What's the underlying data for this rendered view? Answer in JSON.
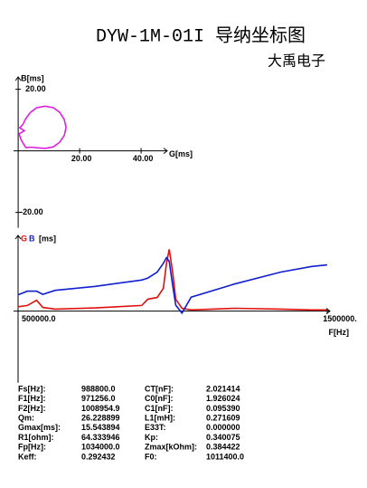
{
  "header": {
    "title": "DYW-1M-01I 导纳坐标图",
    "subtitle": "大禹电子"
  },
  "chart_data": [
    {
      "type": "line",
      "xlabel": "G[ms]",
      "ylabel": "B[ms]",
      "x": [
        2.5,
        1.0,
        0.3,
        2.0,
        0.5,
        1.5,
        2.5,
        4.0,
        6.0,
        8.8,
        11.5,
        13.5,
        15.0,
        15.6,
        15.0,
        13.5,
        11.5,
        8.8,
        6.0,
        4.0,
        2.5
      ],
      "series": [
        {
          "color": "#e020e0",
          "values": [
            1.0,
            3.5,
            5.5,
            6.5,
            7.5,
            8.5,
            10.5,
            12.5,
            14.0,
            14.5,
            14.0,
            12.5,
            10.2,
            7.6,
            5.0,
            2.8,
            1.3,
            0.8,
            1.0,
            1.2,
            1.0
          ]
        }
      ],
      "xlim": [
        -1.5,
        48.5
      ],
      "ylim": [
        -25,
        24
      ],
      "xticks": [
        {
          "value": 20,
          "label": "20.00"
        },
        {
          "value": 40,
          "label": "40.00"
        }
      ],
      "yticks": [
        {
          "value": 20,
          "label": "20.00"
        },
        {
          "value": -20,
          "label": "-20.00"
        }
      ]
    },
    {
      "type": "line",
      "xlabel": "F[Hz]",
      "ylabel": "[ms]",
      "x": [
        500000,
        530000,
        560000,
        580000,
        620000,
        750000,
        900000,
        920000,
        950000,
        970000,
        980000,
        988800,
        1000000,
        1010000,
        1030000,
        1060000,
        1200000,
        1350000,
        1450000,
        1500000
      ],
      "series": [
        {
          "name": "G",
          "color": "#e01010",
          "values": [
            1.1,
            1.4,
            2.7,
            0.9,
            0.5,
            0.8,
            1.4,
            3.0,
            3.4,
            5.7,
            12.0,
            15.5,
            9.8,
            3.0,
            0.7,
            0.3,
            0.7,
            0.5,
            0.3,
            0.3
          ]
        },
        {
          "name": "B",
          "color": "#1020d0",
          "values": [
            4.1,
            5.0,
            5.0,
            4.2,
            5.2,
            6.2,
            7.8,
            8.3,
            9.8,
            12.0,
            13.4,
            12.5,
            6.5,
            1.5,
            -0.5,
            3.5,
            6.8,
            9.8,
            11.2,
            11.6
          ]
        }
      ],
      "xlim": [
        500000,
        1500000
      ],
      "ylim": [
        -18,
        19
      ],
      "xticks": [
        {
          "value": 500000,
          "label": "500000.0"
        },
        {
          "value": 1500000,
          "label": "1500000."
        }
      ]
    }
  ],
  "table": {
    "rows": [
      [
        "Fs[Hz]:",
        "988800.0",
        "CT[nF]:",
        "2.021414"
      ],
      [
        "F1[Hz]:",
        "971256.0",
        "C0[nF]:",
        "1.926024"
      ],
      [
        "F2[Hz]:",
        "1008954.9",
        "C1[nF]:",
        "0.095390"
      ],
      [
        "Qm:",
        "26.228899",
        "L1[mH]:",
        "0.271609"
      ],
      [
        "Gmax[ms]:",
        "15.543894",
        "E33T:",
        "0.000000"
      ],
      [
        "R1[ohm]:",
        "64.333946",
        "Kp:",
        "0.340075"
      ],
      [
        "Fp[Hz]:",
        "1034000.0",
        "Zmax[kOhm]:",
        "0.384422"
      ],
      [
        "Keff:",
        "0.292432",
        "F0:",
        "1011400.0"
      ]
    ]
  }
}
